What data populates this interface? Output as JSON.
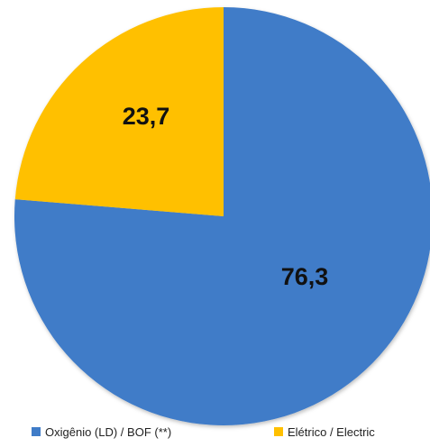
{
  "chart_data": {
    "type": "pie",
    "title": "",
    "categories": [
      "Oxigênio (LD) / BOF (**)",
      "Elétrico / Electric"
    ],
    "values": [
      76.3,
      23.7
    ],
    "data_labels": [
      "76,3",
      "23,7"
    ],
    "colors": [
      "#3F7CC8",
      "#FFC000"
    ],
    "legend": {
      "position": "bottom"
    },
    "start_angle": "12 o'clock",
    "direction": "clockwise"
  }
}
